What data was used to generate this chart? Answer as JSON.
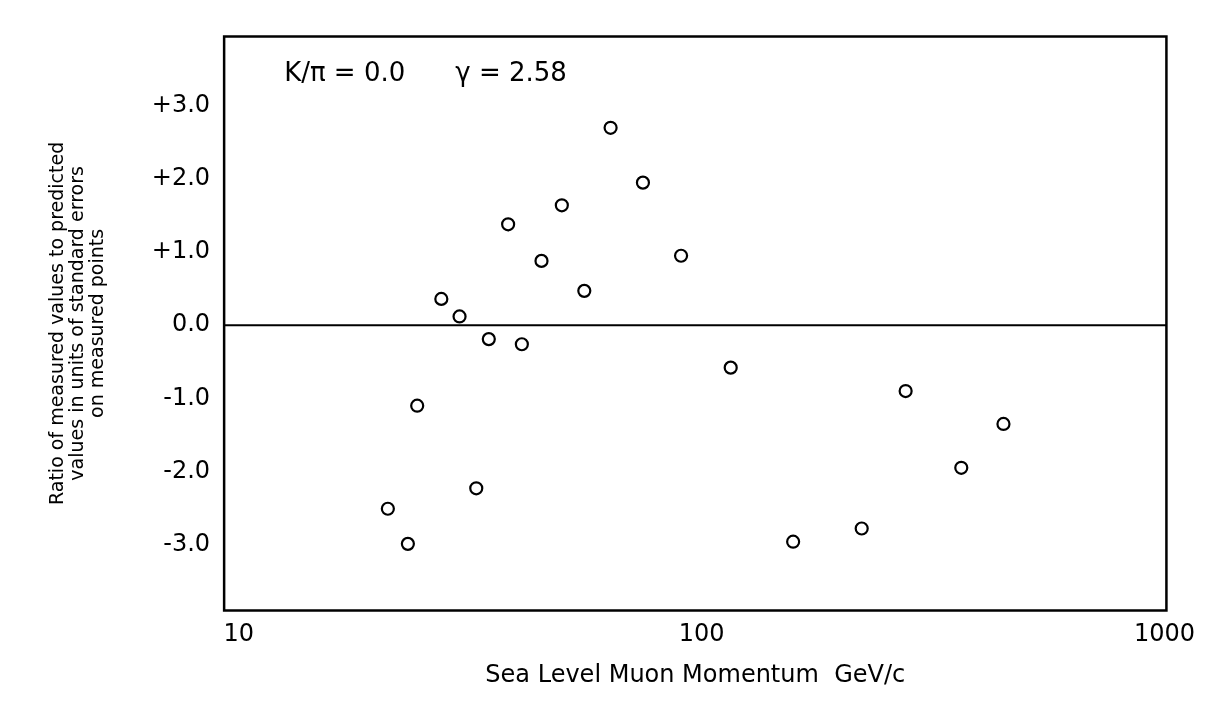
{
  "chart_data": {
    "type": "scatter",
    "xlabel": "Sea Level Muon Momentum  GeV/c",
    "ylabel": "Ratio of measured values to predicted\nvalues in units of standard errors\non measured points",
    "annotations": [
      "K/π = 0.0",
      "γ = 2.58"
    ],
    "x": [
      21.0,
      23.2,
      24.3,
      27.4,
      30.0,
      32.6,
      34.7,
      38.2,
      40.9,
      45.1,
      49.9,
      55.8,
      63.6,
      74.7,
      90.3,
      115.6,
      157.7,
      221.8,
      276,
      364,
      449
    ],
    "series": [
      {
        "color": "#000000",
        "values": [
          -2.51,
          -2.99,
          -1.1,
          0.36,
          0.12,
          -2.23,
          -0.19,
          1.38,
          -0.26,
          0.88,
          1.64,
          0.47,
          2.7,
          1.95,
          0.95,
          -0.58,
          -2.96,
          -2.78,
          -0.9,
          -1.95,
          -1.35
        ]
      }
    ],
    "log": "x",
    "xlim": [
      9.3,
      1010
    ],
    "xticks": [
      10,
      100,
      1000
    ],
    "ylim": [
      -3.9,
      3.95
    ],
    "yticks": [
      {
        "value": 3,
        "label": "+3.0"
      },
      {
        "value": 2,
        "label": "+2.0"
      },
      {
        "value": 1,
        "label": "+1.0"
      },
      {
        "value": 0,
        "label": "0.0"
      },
      {
        "value": -1,
        "label": "-1.0"
      },
      {
        "value": -2,
        "label": "-2.0"
      },
      {
        "value": -3,
        "label": "-3.0"
      }
    ],
    "ref_lines": [
      {
        "axis": "y",
        "value": 0,
        "color": "#000000"
      }
    ],
    "grid": false,
    "legend": false,
    "marker": "circle"
  }
}
